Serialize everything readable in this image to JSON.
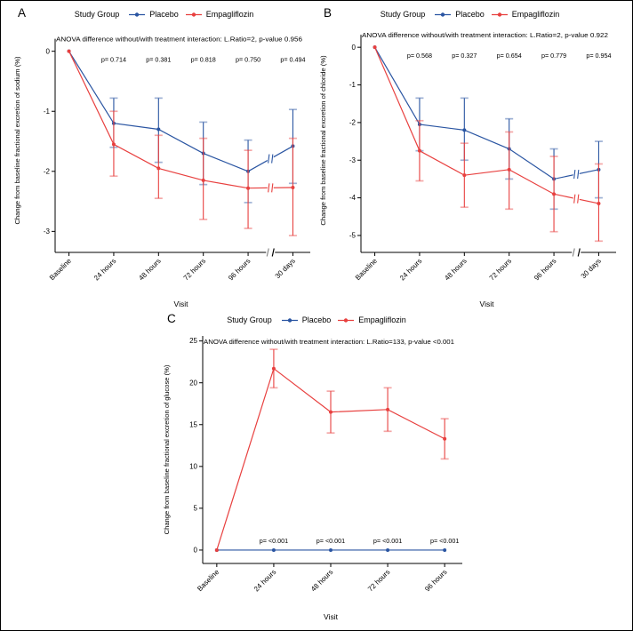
{
  "page": {
    "background": "#ffffff",
    "frame_color": "#000000"
  },
  "colors": {
    "placebo": "#2A55A2",
    "empagliflozin": "#E8403F",
    "axis": "#000000",
    "break_gray": "#8a8a8a"
  },
  "chart_data": [
    {
      "type": "line",
      "panel_label": "A",
      "legend_title": "Study Group",
      "anova": "ANOVA difference without/with treatment interaction: L.Ratio=2, p-value 0.956",
      "ylabel": "Change from baseline fractional excretion of sodium (%)",
      "xlabel": "Visit",
      "categories": [
        "Baseline",
        "24 hours",
        "48 hours",
        "72 hours",
        "96 hours",
        "30 days"
      ],
      "axis_break_before_last": true,
      "ylim": [
        -3.35,
        0.38
      ],
      "yticks": [
        0,
        -1,
        -2,
        -3
      ],
      "p_position": "top",
      "p_start": 1,
      "p_values": [
        "p= 0.714",
        "p= 0.381",
        "p= 0.818",
        "p= 0.750",
        "p= 0.494"
      ],
      "series": [
        {
          "name": "Placebo",
          "color": "#2A55A2",
          "values": [
            0,
            -1.2,
            -1.3,
            -1.7,
            -2.0,
            -1.58
          ],
          "ci_high": [
            null,
            -0.78,
            -0.78,
            -1.18,
            -1.48,
            -0.97
          ],
          "ci_low": [
            null,
            -1.6,
            -1.85,
            -2.22,
            -2.52,
            -2.2
          ]
        },
        {
          "name": "Empagliflozin",
          "color": "#E8403F",
          "values": [
            0,
            -1.55,
            -1.95,
            -2.15,
            -2.28,
            -2.27
          ],
          "ci_high": [
            null,
            -1.0,
            -1.4,
            -1.45,
            -1.65,
            -1.45
          ],
          "ci_low": [
            null,
            -2.08,
            -2.45,
            -2.8,
            -2.95,
            -3.07
          ]
        }
      ]
    },
    {
      "type": "line",
      "panel_label": "B",
      "legend_title": "Study Group",
      "anova": "ANOVA difference without/with treatment interaction: L.Ratio=2, p-value 0.922",
      "ylabel": "Change from baseline fractional excretion of chloride (%)",
      "xlabel": "Visit",
      "categories": [
        "Baseline",
        "24 hours",
        "48 hours",
        "72 hours",
        "96 hours",
        "30 days"
      ],
      "axis_break_before_last": true,
      "ylim": [
        -5.45,
        0.5
      ],
      "yticks": [
        0,
        -1,
        -2,
        -3,
        -4,
        -5
      ],
      "p_position": "top",
      "p_start": 1,
      "p_values": [
        "p= 0.568",
        "p= 0.327",
        "p= 0.654",
        "p= 0.779",
        "p= 0.954"
      ],
      "series": [
        {
          "name": "Placebo",
          "color": "#2A55A2",
          "values": [
            0,
            -2.05,
            -2.2,
            -2.7,
            -3.5,
            -3.25
          ],
          "ci_high": [
            null,
            -1.35,
            -1.35,
            -1.9,
            -2.7,
            -2.5
          ],
          "ci_low": [
            null,
            -2.75,
            -3.0,
            -3.5,
            -4.3,
            -4.0
          ]
        },
        {
          "name": "Empagliflozin",
          "color": "#E8403F",
          "values": [
            0,
            -2.75,
            -3.4,
            -3.25,
            -3.9,
            -4.15
          ],
          "ci_high": [
            null,
            -1.95,
            -2.55,
            -2.25,
            -2.9,
            -3.1
          ],
          "ci_low": [
            null,
            -3.55,
            -4.25,
            -4.3,
            -4.9,
            -5.15
          ]
        }
      ]
    },
    {
      "type": "line",
      "panel_label": "C",
      "legend_title": "Study Group",
      "anova": "ANOVA difference without/with treatment interaction: L.Ratio=133, p-value <0.001",
      "ylabel": "Change from baseline fractional excretion of glucose (%)",
      "xlabel": "Visit",
      "categories": [
        "Baseline",
        "24 hours",
        "48 hours",
        "72 hours",
        "96 hours"
      ],
      "axis_break_before_last": false,
      "ylim": [
        -1.6,
        25.6
      ],
      "yticks": [
        0,
        5,
        10,
        15,
        20,
        25
      ],
      "p_position": "above_zero",
      "p_start": 1,
      "p_values": [
        "p= <0.001",
        "p= <0.001",
        "p= <0.001",
        "p= <0.001"
      ],
      "series": [
        {
          "name": "Placebo",
          "color": "#2A55A2",
          "values": [
            0,
            0,
            0,
            0,
            0
          ],
          "ci_high": [
            null,
            null,
            null,
            null,
            null
          ],
          "ci_low": [
            null,
            null,
            null,
            null,
            null
          ]
        },
        {
          "name": "Empagliflozin",
          "color": "#E8403F",
          "values": [
            0,
            21.7,
            16.5,
            16.8,
            13.3
          ],
          "ci_high": [
            null,
            24.0,
            19.0,
            19.4,
            15.7
          ],
          "ci_low": [
            null,
            19.4,
            14.0,
            14.2,
            10.9
          ]
        }
      ]
    }
  ]
}
